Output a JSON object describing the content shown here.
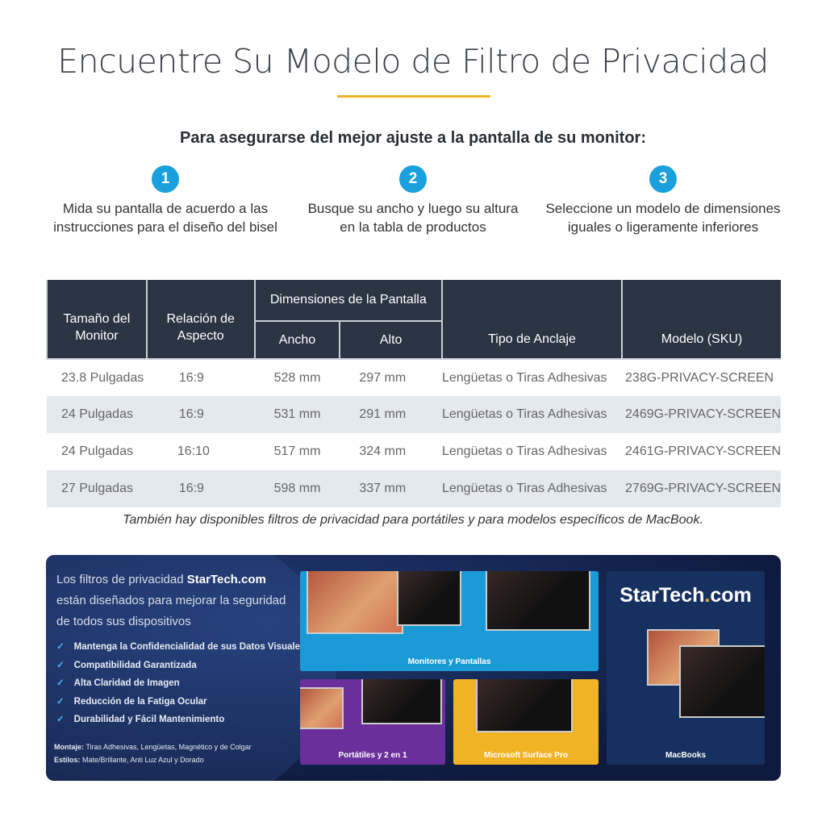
{
  "title": "Encuentre Su Modelo de Filtro de Privacidad",
  "subtitle": "Para asegurarse del mejor ajuste a la pantalla de su monitor:",
  "steps": [
    {
      "number": "1",
      "text": "Mida su pantalla de acuerdo a las instrucciones para el diseño del bisel"
    },
    {
      "number": "2",
      "text": "Busque su ancho y luego su altura en la tabla de productos"
    },
    {
      "number": "3",
      "text": "Seleccione un modelo de dimensiones iguales o ligeramente inferiores"
    }
  ],
  "table": {
    "headers": {
      "size": "Tamaño del Monitor",
      "ratio": "Relación de Aspecto",
      "dims": "Dimensiones de la Pantalla",
      "width": "Ancho",
      "height": "Alto",
      "mount": "Tipo de Anclaje",
      "sku": "Modelo (SKU)"
    },
    "rows": [
      [
        "23.8 Pulgadas",
        "16:9",
        "528 mm",
        "297 mm",
        "Lengüetas o Tiras Adhesivas",
        "238G-PRIVACY-SCREEN"
      ],
      [
        "24 Pulgadas",
        "16:9",
        "531 mm",
        "291 mm",
        "Lengüetas o Tiras Adhesivas",
        "2469G-PRIVACY-SCREEN"
      ],
      [
        "24 Pulgadas",
        "16:10",
        "517 mm",
        "324 mm",
        "Lengüetas o Tiras Adhesivas",
        "2461G-PRIVACY-SCREEN"
      ],
      [
        "27 Pulgadas",
        "16:9",
        "598 mm",
        "337 mm",
        "Lengüetas o Tiras Adhesivas",
        "2769G-PRIVACY-SCREEN"
      ]
    ]
  },
  "note": "También hay disponibles filtros de privacidad para portátiles y para modelos específicos de MacBook.",
  "banner": {
    "lead_pre": "Los filtros de privacidad ",
    "lead_brand": "StarTech.com",
    "lead_post": " están diseñados para mejorar la seguridad de todos sus dispositivos",
    "features": [
      "Mantenga la Confidencialidad de sus Datos Visuales",
      "Compatibilidad Garantizada",
      "Alta Claridad de Imagen",
      "Reducción de la Fatiga Ocular",
      "Durabilidad y Fácil Mantenimiento"
    ],
    "mount_label": "Montaje:",
    "mount_value": " Tiras Adhesivas, Lengüetas, Magnético y de Colgar",
    "styles_label": "Estilos:",
    "styles_value": " Mate/Brillante, Anti Luz Azul y Dorado",
    "panels": {
      "monitors": "Monitores y Pantallas",
      "laptops": "Portátiles y 2 en 1",
      "surface": "Microsoft Surface Pro",
      "macbooks": "MacBooks"
    },
    "logo_a": "StarTech",
    "logo_dot": ".",
    "logo_b": "com"
  },
  "colors": {
    "accent_blue": "#1aa0dc",
    "gold": "#f0b323",
    "header_bg": "#2b3442",
    "row_alt": "#e4e9ef"
  }
}
